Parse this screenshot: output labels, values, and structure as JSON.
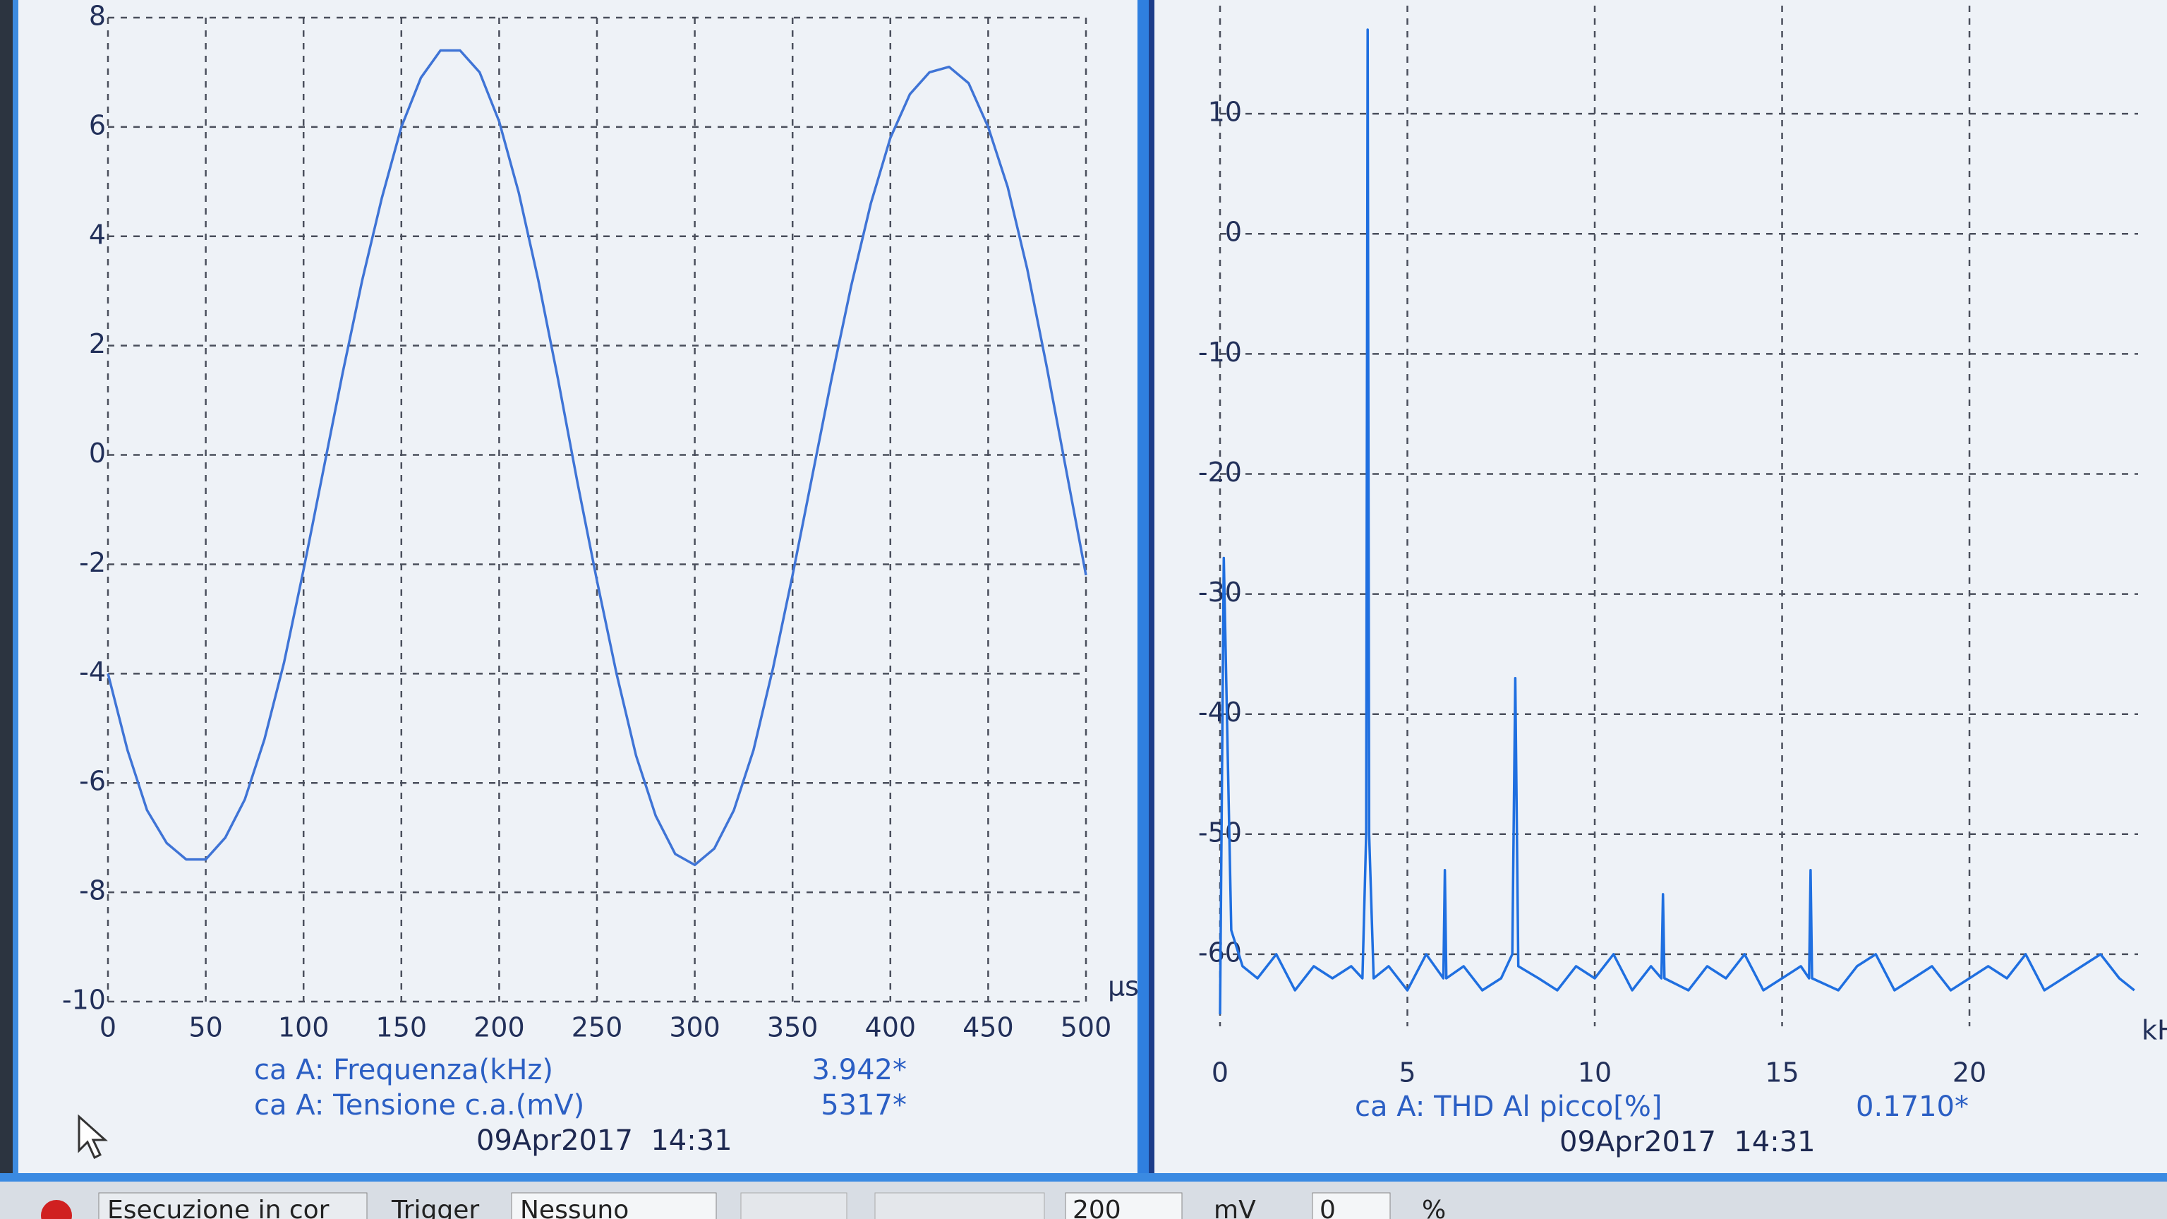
{
  "chart_data": [
    {
      "type": "line",
      "x_label": "µs",
      "color": "#3f74d6",
      "grid": true,
      "xlim": [
        0,
        500
      ],
      "ylim": [
        -10,
        8
      ],
      "xticks": [
        0,
        50,
        100,
        150,
        200,
        250,
        300,
        350,
        400,
        450,
        500
      ],
      "yticks": [
        -10,
        -8,
        -6,
        -4,
        -2,
        0,
        2,
        4,
        6,
        8
      ],
      "x": [
        0,
        10,
        20,
        30,
        40,
        50,
        60,
        70,
        80,
        90,
        100,
        110,
        120,
        130,
        140,
        150,
        160,
        170,
        180,
        190,
        200,
        210,
        220,
        230,
        240,
        250,
        260,
        270,
        280,
        290,
        300,
        310,
        320,
        330,
        340,
        350,
        360,
        370,
        380,
        390,
        400,
        410,
        420,
        430,
        440,
        450,
        460,
        470,
        480,
        490,
        500
      ],
      "values": [
        -4.0,
        -5.4,
        -6.5,
        -7.1,
        -7.4,
        -7.4,
        -7.0,
        -6.3,
        -5.2,
        -3.8,
        -2.1,
        -0.3,
        1.5,
        3.2,
        4.7,
        6.0,
        6.9,
        7.4,
        7.4,
        7.0,
        6.1,
        4.8,
        3.2,
        1.4,
        -0.5,
        -2.3,
        -4.0,
        -5.5,
        -6.6,
        -7.3,
        -7.5,
        -7.2,
        -6.5,
        -5.4,
        -3.9,
        -2.2,
        -0.4,
        1.4,
        3.1,
        4.6,
        5.8,
        6.6,
        7.0,
        7.1,
        6.8,
        6.0,
        4.9,
        3.4,
        1.6,
        -0.3,
        -2.2
      ]
    },
    {
      "type": "line",
      "x_label": "kH",
      "color": "#1f6fe0",
      "grid": true,
      "xlim": [
        0,
        24.5
      ],
      "ylim": [
        -66,
        19
      ],
      "xticks": [
        0,
        5,
        10,
        15,
        20
      ],
      "yticks": [
        -60,
        -50,
        -40,
        -30,
        -20,
        -10,
        0,
        10
      ],
      "x": [
        0,
        0.1,
        0.3,
        0.6,
        1,
        1.5,
        2,
        2.5,
        3,
        3.5,
        3.8,
        3.9,
        3.94,
        3.98,
        4.1,
        4.5,
        5,
        5.5,
        5.96,
        6,
        6.04,
        6.5,
        7,
        7.5,
        7.8,
        7.88,
        7.96,
        8.5,
        9,
        9.5,
        10,
        10.5,
        11,
        11.5,
        11.78,
        11.82,
        11.86,
        12.5,
        13,
        13.5,
        14,
        14.5,
        15,
        15.5,
        15.72,
        15.76,
        15.8,
        16.5,
        17,
        17.5,
        18,
        18.5,
        19,
        19.5,
        20,
        20.5,
        21,
        21.5,
        22,
        22.5,
        23,
        23.5,
        24,
        24.4
      ],
      "values": [
        -65,
        -27,
        -58,
        -61,
        -62,
        -60,
        -63,
        -61,
        -62,
        -61,
        -62,
        -50,
        17,
        -50,
        -62,
        -61,
        -63,
        -60,
        -62,
        -53,
        -62,
        -61,
        -63,
        -62,
        -60,
        -37,
        -61,
        -62,
        -63,
        -61,
        -62,
        -60,
        -63,
        -61,
        -62,
        -55,
        -62,
        -63,
        -61,
        -62,
        -60,
        -63,
        -62,
        -61,
        -62,
        -53,
        -62,
        -63,
        -61,
        -60,
        -63,
        -62,
        -61,
        -63,
        -62,
        -61,
        -62,
        -60,
        -63,
        -62,
        -61,
        -60,
        -62,
        -63
      ]
    }
  ],
  "measurements": {
    "left": [
      [
        "ca A: Frequenza(kHz)",
        "3.942*"
      ],
      [
        "ca A: Tensione c.a.(mV)",
        "5317*"
      ]
    ],
    "left_timestamp": "09Apr2017  14:31",
    "right": [
      [
        "ca A: THD Al picco[%]",
        "0.1710*"
      ]
    ],
    "right_timestamp": "09Apr2017  14:31"
  },
  "status_bar": {
    "status": "Esecuzione in cor",
    "trigger_label": "Trigger",
    "trigger_value": "Nessuno",
    "level": "200",
    "level_unit": "mV",
    "percent_value": "0",
    "percent_unit": "%"
  }
}
